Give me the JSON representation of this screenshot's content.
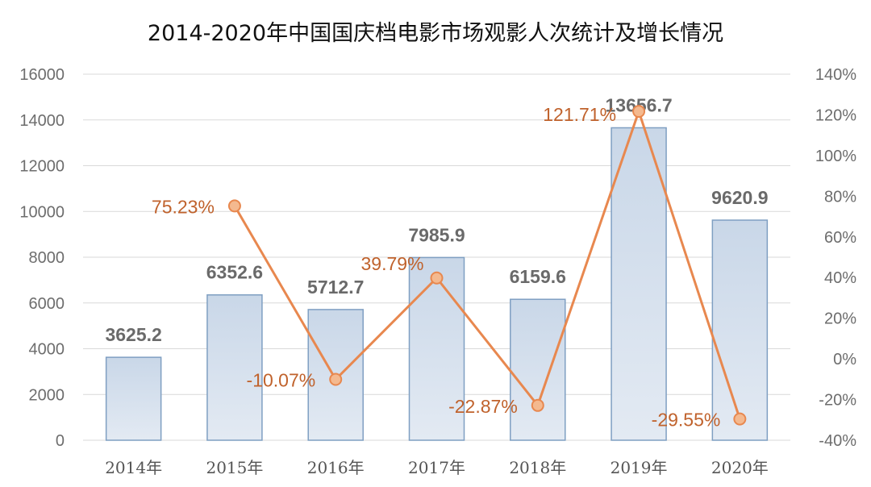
{
  "chart_data": {
    "type": "bar+line",
    "title": "2014-2020年中国国庆档电影市场观影人次统计及增长情况",
    "categories": [
      "2014年",
      "2015年",
      "2016年",
      "2017年",
      "2018年",
      "2019年",
      "2020年"
    ],
    "series": [
      {
        "type": "bar",
        "axis": "left",
        "values": [
          3625.2,
          6352.6,
          5712.7,
          7985.9,
          6159.6,
          13656.7,
          9620.9
        ],
        "labels": [
          "3625.2",
          "6352.6",
          "5712.7",
          "7985.9",
          "6159.6",
          "13656.7",
          "9620.9"
        ]
      },
      {
        "type": "line",
        "axis": "right",
        "values": [
          null,
          75.23,
          -10.07,
          39.79,
          -22.87,
          121.71,
          -29.55
        ],
        "labels": [
          "",
          "75.23%",
          "-10.07%",
          "39.79%",
          "-22.87%",
          "121.71%",
          "-29.55%"
        ]
      }
    ],
    "left_axis": {
      "min": 0,
      "max": 16000,
      "ticks": [
        "0",
        "2000",
        "4000",
        "6000",
        "8000",
        "10000",
        "12000",
        "14000",
        "16000"
      ]
    },
    "right_axis": {
      "min": -40,
      "max": 140,
      "ticks": [
        "-40%",
        "-20%",
        "0%",
        "20%",
        "40%",
        "60%",
        "80%",
        "100%",
        "120%",
        "140%"
      ]
    },
    "grid": true,
    "legend": "none",
    "colors": {
      "bar_top": "#c9d7e8",
      "bar_bottom": "#e3eaf3",
      "bar_stroke": "#7f9fc2",
      "line": "#e8884f",
      "marker_fill": "#f4b98f",
      "label_line": "#c0622c",
      "grid": "#d9d9d9"
    }
  }
}
